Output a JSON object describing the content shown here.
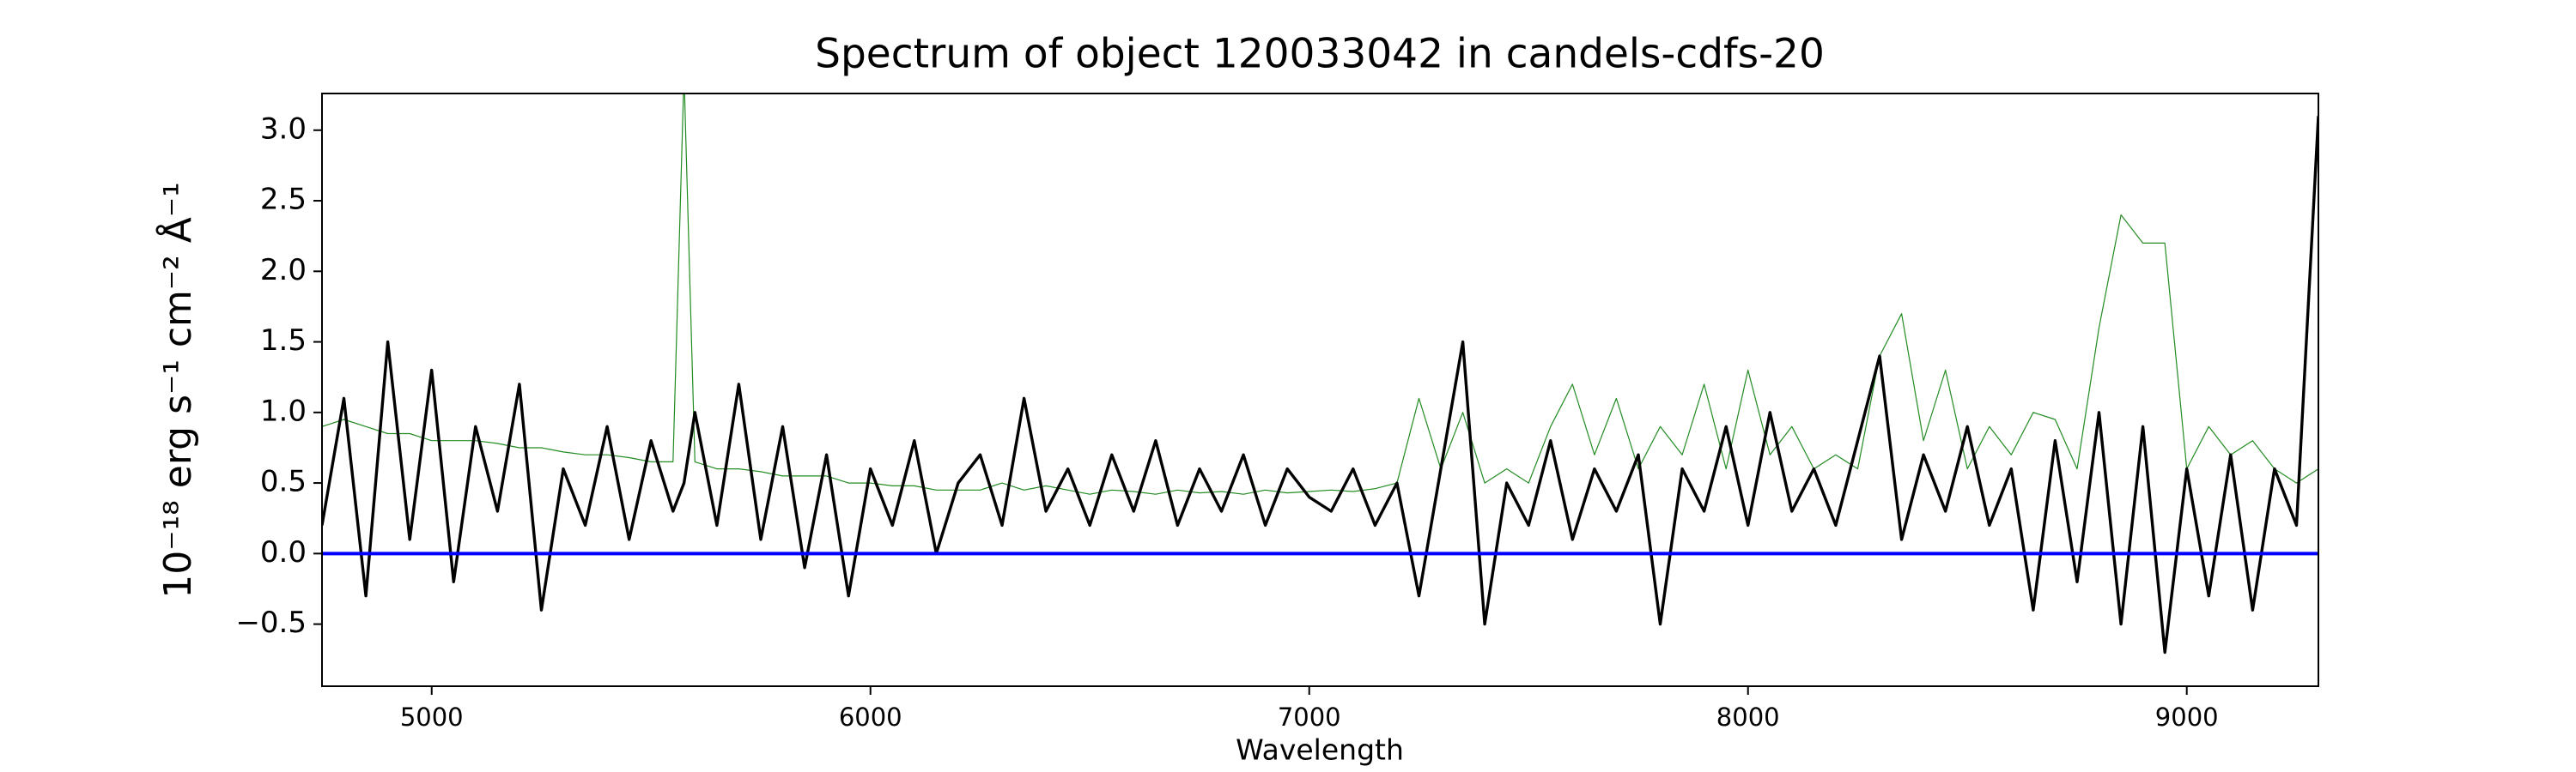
{
  "chart_data": {
    "type": "line",
    "title": "Spectrum of object 120033042 in candels-cdfs-20",
    "xlabel": "Wavelength",
    "ylabel": "10⁻¹⁸ erg s⁻¹ cm⁻² Å⁻¹",
    "x": [
      4750,
      4800,
      4850,
      4900,
      4950,
      5000,
      5050,
      5100,
      5150,
      5200,
      5250,
      5300,
      5350,
      5400,
      5450,
      5500,
      5550,
      5575,
      5600,
      5650,
      5700,
      5750,
      5800,
      5850,
      5900,
      5950,
      6000,
      6050,
      6100,
      6150,
      6200,
      6250,
      6300,
      6350,
      6400,
      6450,
      6500,
      6550,
      6600,
      6650,
      6700,
      6750,
      6800,
      6850,
      6900,
      6950,
      7000,
      7050,
      7100,
      7150,
      7200,
      7250,
      7300,
      7350,
      7400,
      7450,
      7500,
      7550,
      7600,
      7650,
      7700,
      7750,
      7800,
      7850,
      7900,
      7950,
      8000,
      8050,
      8100,
      8150,
      8200,
      8250,
      8300,
      8350,
      8400,
      8450,
      8500,
      8550,
      8600,
      8650,
      8700,
      8750,
      8800,
      8850,
      8900,
      8950,
      9000,
      9050,
      9100,
      9150,
      9200,
      9250,
      9300
    ],
    "series": [
      {
        "color": "#228b22",
        "width": 1.2,
        "values": [
          0.9,
          0.95,
          0.9,
          0.85,
          0.85,
          0.8,
          0.8,
          0.8,
          0.78,
          0.75,
          0.75,
          0.72,
          0.7,
          0.7,
          0.68,
          0.65,
          0.65,
          3.4,
          0.65,
          0.6,
          0.6,
          0.58,
          0.55,
          0.55,
          0.55,
          0.5,
          0.5,
          0.48,
          0.48,
          0.45,
          0.45,
          0.45,
          0.5,
          0.45,
          0.48,
          0.45,
          0.42,
          0.45,
          0.44,
          0.42,
          0.45,
          0.43,
          0.44,
          0.42,
          0.45,
          0.43,
          0.44,
          0.45,
          0.44,
          0.46,
          0.5,
          1.1,
          0.6,
          1.0,
          0.5,
          0.6,
          0.5,
          0.9,
          1.2,
          0.7,
          1.1,
          0.6,
          0.9,
          0.7,
          1.2,
          0.6,
          1.3,
          0.7,
          0.9,
          0.6,
          0.7,
          0.6,
          1.4,
          1.7,
          0.8,
          1.3,
          0.6,
          0.9,
          0.7,
          1.0,
          0.95,
          0.6,
          1.6,
          2.4,
          2.2,
          2.2,
          0.6,
          0.9,
          0.7,
          0.8,
          0.6,
          0.5,
          0.6
        ]
      },
      {
        "color": "#000000",
        "width": 3.4,
        "values": [
          0.2,
          1.1,
          -0.3,
          1.5,
          0.1,
          1.3,
          -0.2,
          0.9,
          0.3,
          1.2,
          -0.4,
          0.6,
          0.2,
          0.9,
          0.1,
          0.8,
          0.3,
          0.5,
          1.0,
          0.2,
          1.2,
          0.1,
          0.9,
          -0.1,
          0.7,
          -0.3,
          0.6,
          0.2,
          0.8,
          0.0,
          0.5,
          0.7,
          0.2,
          1.1,
          0.3,
          0.6,
          0.2,
          0.7,
          0.3,
          0.8,
          0.2,
          0.6,
          0.3,
          0.7,
          0.2,
          0.6,
          0.4,
          0.3,
          0.6,
          0.2,
          0.5,
          -0.3,
          0.6,
          1.5,
          -0.5,
          0.5,
          0.2,
          0.8,
          0.1,
          0.6,
          0.3,
          0.7,
          -0.5,
          0.6,
          0.3,
          0.9,
          0.2,
          1.0,
          0.3,
          0.6,
          0.2,
          0.8,
          1.4,
          0.1,
          0.7,
          0.3,
          0.9,
          0.2,
          0.6,
          -0.4,
          0.8,
          -0.2,
          1.0,
          -0.5,
          0.9,
          -0.7,
          0.6,
          -0.3,
          0.7,
          -0.4,
          0.6,
          0.2,
          3.1
        ]
      }
    ],
    "hlines": [
      {
        "value": 0,
        "color": "#0000ff"
      }
    ],
    "xlim": [
      4750,
      9300
    ],
    "xticks": [
      5000,
      6000,
      7000,
      8000,
      9000
    ],
    "ylim": [
      -0.94,
      3.26
    ],
    "yticks": [
      {
        "value": -0.5,
        "label": "−0.5"
      },
      {
        "value": 0,
        "label": "0.0"
      },
      0.5,
      {
        "value": 1,
        "label": "1.0"
      },
      1.5,
      {
        "value": 2,
        "label": "2.0"
      },
      2.5,
      {
        "value": 3,
        "label": "3.0"
      }
    ],
    "grid": false
  }
}
